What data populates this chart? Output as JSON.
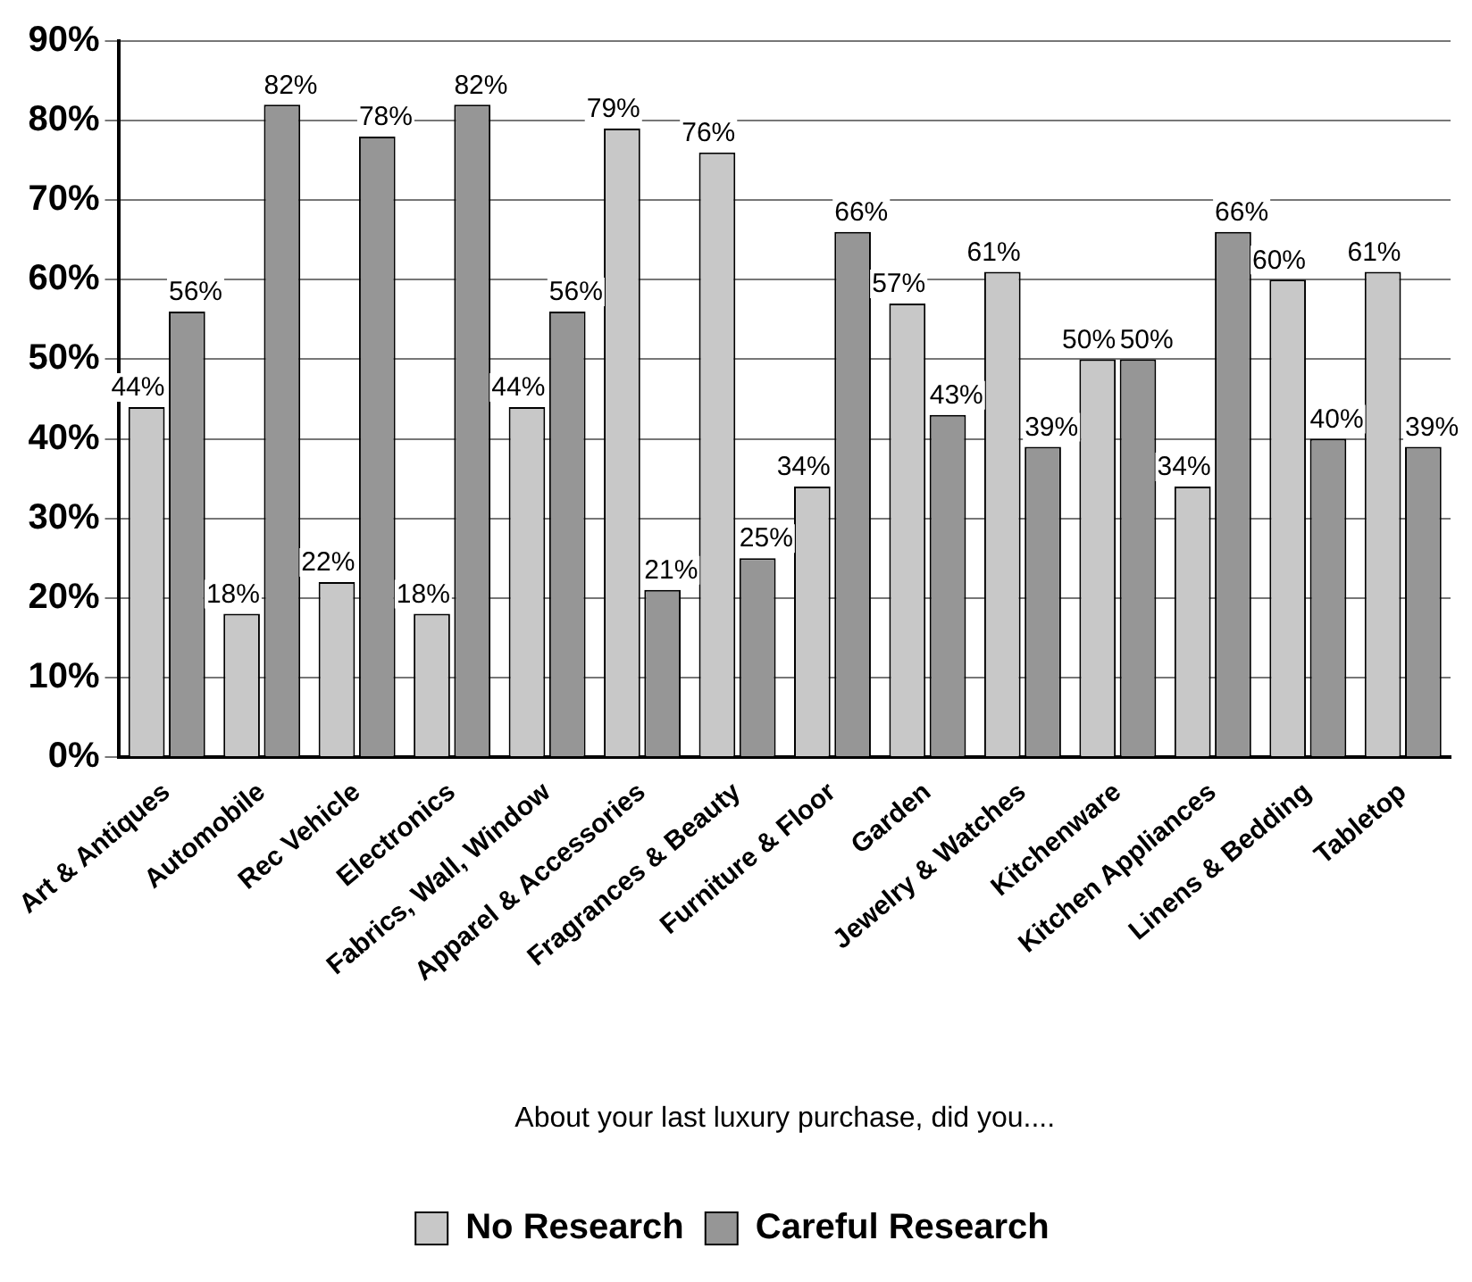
{
  "chart_data": {
    "type": "bar",
    "xlabel": "About your last luxury purchase, did you....",
    "categories": [
      "Art & Antiques",
      "Automobile",
      "Rec Vehicle",
      "Electronics",
      "Fabrics, Wall, Window",
      "Apparel & Accessories",
      "Fragrances & Beauty",
      "Furniture & Floor",
      "Garden",
      "Jewelry & Watches",
      "Kitchenware",
      "Kitchen Appliances",
      "Linens & Bedding",
      "Tabletop"
    ],
    "series": [
      {
        "name": "No Research",
        "color": "#c8c8c8",
        "values": [
          44,
          18,
          22,
          18,
          44,
          79,
          76,
          34,
          57,
          61,
          50,
          34,
          60,
          61
        ],
        "value_labels": [
          "44%",
          "18%",
          "22%",
          "18%",
          "44%",
          "79%",
          "76%",
          "34%",
          "57%",
          "61%",
          "50%",
          "34%",
          "60%",
          "61%"
        ]
      },
      {
        "name": "Careful Research",
        "color": "#969696",
        "values": [
          56,
          82,
          78,
          82,
          56,
          21,
          25,
          66,
          43,
          39,
          50,
          66,
          40,
          39
        ],
        "value_labels": [
          "56%",
          "82%",
          "78%",
          "82%",
          "56%",
          "21%",
          "25%",
          "66%",
          "43%",
          "39%",
          "50%",
          "66%",
          "40%",
          "39%"
        ]
      }
    ],
    "ylim": [
      0,
      90
    ],
    "yticks": [
      {
        "value": 0,
        "label": "0%"
      },
      {
        "value": 10,
        "label": "10%"
      },
      {
        "value": 20,
        "label": "20%"
      },
      {
        "value": 30,
        "label": "30%"
      },
      {
        "value": 40,
        "label": "40%"
      },
      {
        "value": 50,
        "label": "50%"
      },
      {
        "value": 60,
        "label": "60%"
      },
      {
        "value": 70,
        "label": "70%"
      },
      {
        "value": 80,
        "label": "80%"
      },
      {
        "value": 90,
        "label": "90%"
      }
    ],
    "grid": "y",
    "legend": "bottom"
  }
}
